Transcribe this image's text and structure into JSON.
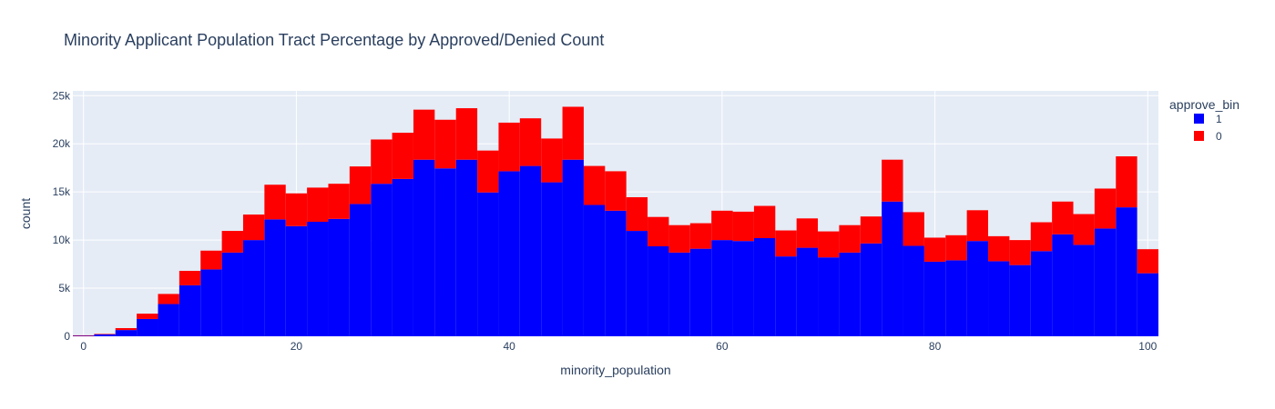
{
  "chart_data": {
    "type": "bar",
    "subtype": "stacked-histogram",
    "title": "Minority Applicant Population Tract Percentage by Approved/Denied Count",
    "xlabel": "minority_population",
    "ylabel": "count",
    "xlim": [
      -1.0,
      101.0
    ],
    "ylim": [
      0,
      25500
    ],
    "xticks": [
      0,
      20,
      40,
      60,
      80,
      100
    ],
    "xtick_labels": [
      "0",
      "20",
      "40",
      "60",
      "80",
      "100"
    ],
    "yticks": [
      0,
      5000,
      10000,
      15000,
      20000,
      25000
    ],
    "ytick_labels": [
      "0",
      "5k",
      "10k",
      "15k",
      "20k",
      "25k"
    ],
    "grid": true,
    "plot_background": "#e5ecf6",
    "bin_width": 2,
    "x": [
      0,
      2,
      4,
      6,
      8,
      10,
      12,
      14,
      16,
      18,
      20,
      22,
      24,
      26,
      28,
      30,
      32,
      34,
      36,
      38,
      40,
      42,
      44,
      46,
      48,
      50,
      52,
      54,
      56,
      58,
      60,
      62,
      64,
      66,
      68,
      70,
      72,
      74,
      76,
      78,
      80,
      82,
      84,
      86,
      88,
      90,
      92,
      94,
      96,
      98,
      100
    ],
    "legend": {
      "title": "approve_bin",
      "position": "top-right"
    },
    "series": [
      {
        "name": "1",
        "color": "#0000ff",
        "values": [
          50,
          200,
          650,
          1800,
          3350,
          5300,
          6950,
          8700,
          10000,
          12150,
          11450,
          11900,
          12200,
          13750,
          15850,
          16350,
          18350,
          17450,
          18350,
          14950,
          17150,
          17700,
          16000,
          18350,
          13650,
          13050,
          10950,
          9350,
          8700,
          9100,
          10000,
          9900,
          10200,
          8300,
          9200,
          8200,
          8700,
          9650,
          14000,
          9400,
          7750,
          7900,
          9900,
          7800,
          7400,
          8850,
          10600,
          9500,
          11200,
          13400,
          6550
        ]
      },
      {
        "name": "0",
        "color": "#ff0000",
        "values": [
          50,
          50,
          200,
          550,
          1050,
          1500,
          1950,
          2250,
          2650,
          3600,
          3400,
          3550,
          3650,
          3900,
          4600,
          4800,
          5200,
          5050,
          5350,
          4350,
          5050,
          4950,
          4550,
          5500,
          4050,
          4100,
          3500,
          3050,
          2850,
          2650,
          3050,
          3050,
          3350,
          2700,
          3050,
          2700,
          2850,
          2800,
          4350,
          3500,
          2500,
          2600,
          3200,
          2600,
          2600,
          3000,
          3400,
          3200,
          4150,
          5300,
          2500
        ]
      }
    ]
  }
}
